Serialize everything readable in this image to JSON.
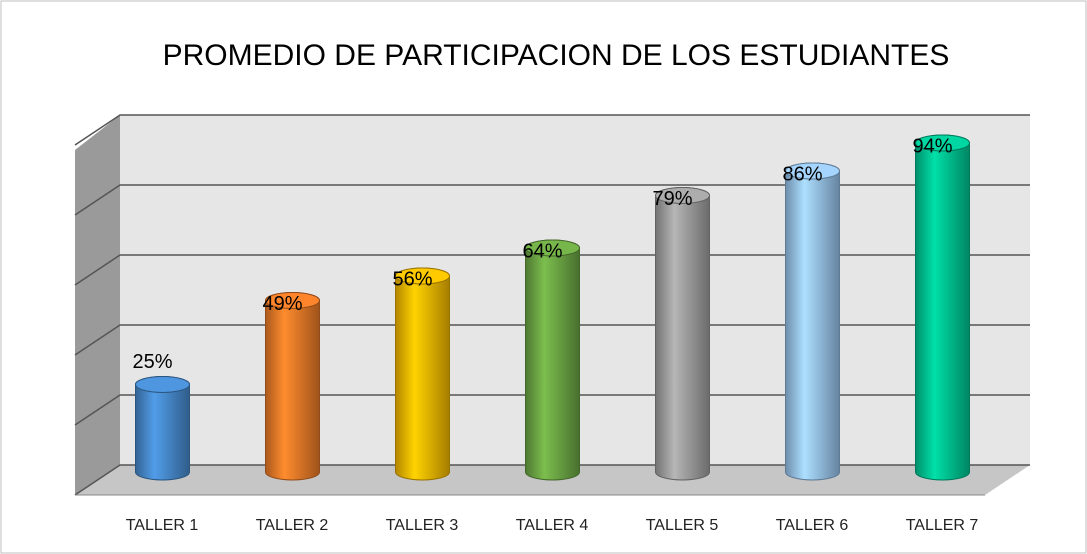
{
  "chart_data": {
    "type": "bar3d",
    "title": "PROMEDIO DE PARTICIPACION DE LOS ESTUDIANTES",
    "categories": [
      "TALLER 1",
      "TALLER 2",
      "TALLER 3",
      "TALLER 4",
      "TALLER 5",
      "TALLER 6",
      "TALLER 7"
    ],
    "values": [
      25,
      49,
      56,
      64,
      79,
      86,
      94
    ],
    "value_labels": [
      "25%",
      "49%",
      "56%",
      "64%",
      "79%",
      "86%",
      "94%"
    ],
    "colors": [
      "#4a8fd4",
      "#f47f2a",
      "#ffc000",
      "#71ad47",
      "#a5a5a5",
      "#9dcbf7",
      "#00cc99"
    ],
    "ylim": [
      0,
      100
    ],
    "yticks": [
      0,
      20,
      40,
      60,
      80,
      100
    ],
    "grid": true
  }
}
